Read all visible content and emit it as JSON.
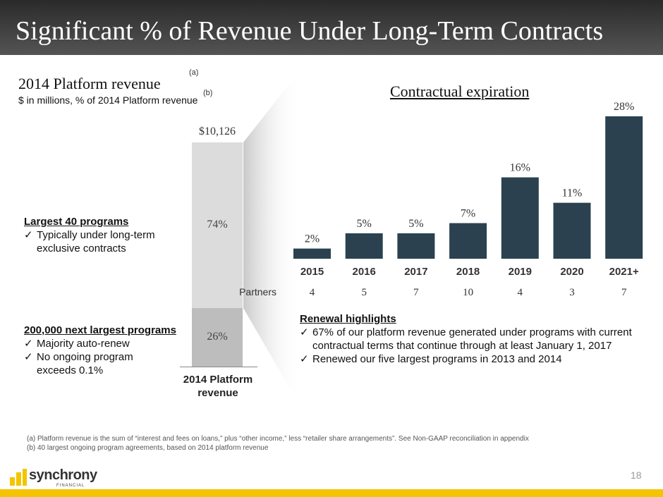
{
  "header": {
    "title": "Significant % of Revenue Under Long-Term Contracts"
  },
  "left": {
    "title": "2014 Platform revenue",
    "title_note": "(a)",
    "subtitle": "$ in millions, % of 2014 Platform revenue",
    "subtitle_note": "(b)",
    "total": "$10,126",
    "top_pct_label": "74%",
    "bottom_pct_label": "26%",
    "bar_label": "2014 Platform revenue",
    "largest": {
      "heading": "Largest 40 programs",
      "bullets": [
        "Typically under long-term exclusive contracts"
      ]
    },
    "next": {
      "heading": "200,000 next largest programs",
      "bullets": [
        "Majority auto-renew",
        "No ongoing program exceeds 0.1%"
      ]
    }
  },
  "stack_data": {
    "type": "stacked-bar",
    "total": 10126,
    "segments": [
      {
        "name": "Largest 40 programs",
        "share": 74
      },
      {
        "name": "200,000 next largest programs",
        "share": 26
      }
    ]
  },
  "chart_data": {
    "type": "bar",
    "title": "Contractual expiration",
    "categories": [
      "2015",
      "2016",
      "2017",
      "2018",
      "2019",
      "2020",
      "2021+"
    ],
    "values": [
      2,
      5,
      5,
      7,
      16,
      11,
      28
    ],
    "value_labels": [
      "2%",
      "5%",
      "5%",
      "7%",
      "16%",
      "11%",
      "28%"
    ],
    "ylim": [
      0,
      28
    ],
    "partners_label": "Partners",
    "partners": [
      "4",
      "5",
      "7",
      "10",
      "4",
      "3",
      "7"
    ],
    "bar_color": "#2b4150"
  },
  "renewal": {
    "heading": "Renewal highlights",
    "bullets": [
      "67% of our platform revenue generated under programs with current contractual terms that continue through at least January 1, 2017",
      "Renewed our five largest programs in 2013 and 2014"
    ]
  },
  "footnotes": [
    "(a) Platform revenue is the sum of “interest and fees on loans,” plus “other income,” less “retailer share arrangements”.  See Non-GAAP reconciliation in appendix",
    "(b) 40 largest ongoing program agreements, based on 2014 platform revenue"
  ],
  "logo": {
    "name": "synchrony",
    "sub": "FINANCIAL"
  },
  "page_number": "18",
  "colors": {
    "accent": "#f5c400",
    "bar": "#2b4150",
    "stack_top": "#dcdcdc",
    "stack_bottom": "#bdbdbd"
  }
}
